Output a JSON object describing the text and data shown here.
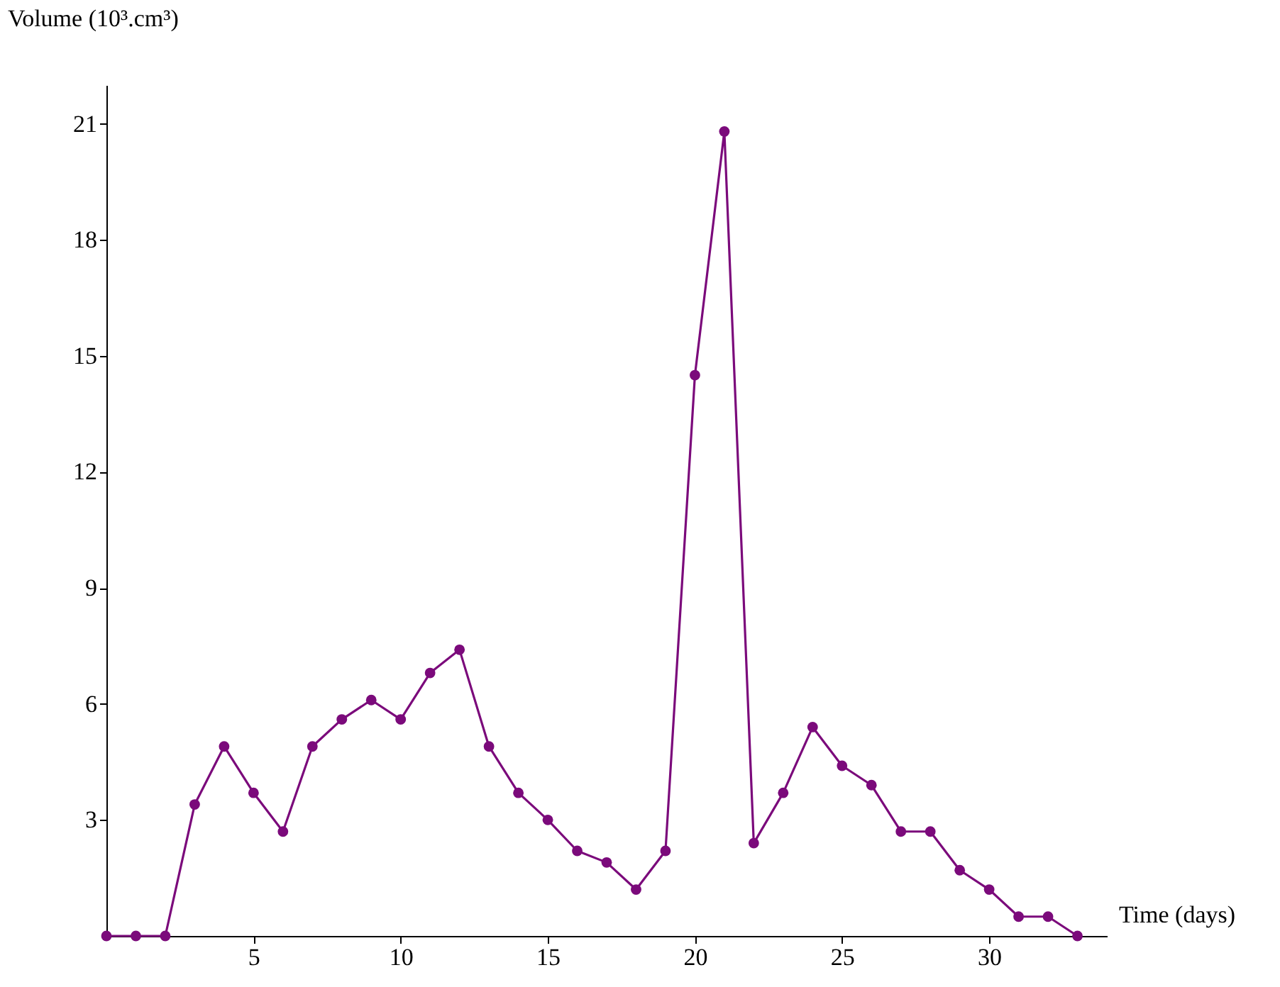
{
  "chart_data": {
    "type": "line",
    "xlabel": "Time (days)",
    "ylabel": "Volume (10³.cm³)",
    "x": [
      0,
      1,
      2,
      3,
      4,
      5,
      6,
      7,
      8,
      9,
      10,
      11,
      12,
      13,
      14,
      15,
      16,
      17,
      18,
      19,
      20,
      21,
      22,
      23,
      24,
      25,
      26,
      27,
      28,
      29,
      30,
      31,
      32,
      33
    ],
    "series": [
      {
        "color": "#7b0a7b",
        "values": [
          0,
          0,
          0,
          3.4,
          4.9,
          3.7,
          2.7,
          4.9,
          5.6,
          6.1,
          5.6,
          6.8,
          7.4,
          4.9,
          3.7,
          3.0,
          2.2,
          1.9,
          1.2,
          2.2,
          14.5,
          20.8,
          2.4,
          3.7,
          5.4,
          4.4,
          3.9,
          2.7,
          2.7,
          1.7,
          1.2,
          0.5,
          0.5,
          0
        ]
      }
    ],
    "xlim": [
      0,
      34
    ],
    "ylim": [
      0,
      22
    ],
    "xticks": [
      5,
      10,
      15,
      20,
      25,
      30
    ],
    "yticks": [
      3,
      6,
      9,
      12,
      15,
      18,
      21
    ],
    "grid": false,
    "marker": "circle",
    "line_style": "solid"
  }
}
